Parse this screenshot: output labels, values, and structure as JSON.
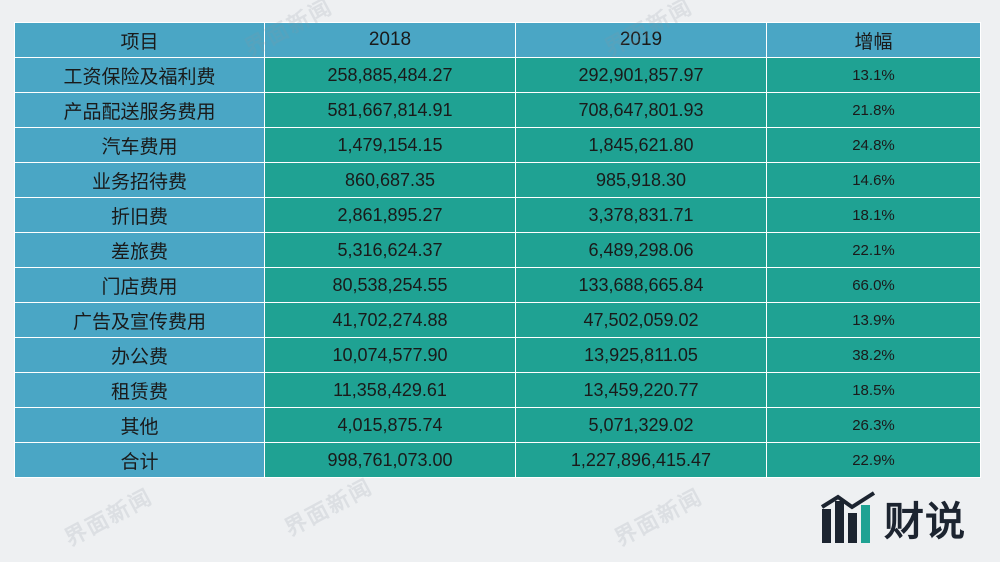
{
  "table": {
    "headers": [
      "项目",
      "2018",
      "2019",
      "增幅"
    ],
    "rows": [
      {
        "label": "工资保险及福利费",
        "y2018": "258,885,484.27",
        "y2019": "292,901,857.97",
        "growth": "13.1%"
      },
      {
        "label": "产品配送服务费用",
        "y2018": "581,667,814.91",
        "y2019": "708,647,801.93",
        "growth": "21.8%"
      },
      {
        "label": "汽车费用",
        "y2018": "1,479,154.15",
        "y2019": "1,845,621.80",
        "growth": "24.8%"
      },
      {
        "label": "业务招待费",
        "y2018": "860,687.35",
        "y2019": "985,918.30",
        "growth": "14.6%"
      },
      {
        "label": "折旧费",
        "y2018": "2,861,895.27",
        "y2019": "3,378,831.71",
        "growth": "18.1%"
      },
      {
        "label": "差旅费",
        "y2018": "5,316,624.37",
        "y2019": "6,489,298.06",
        "growth": "22.1%"
      },
      {
        "label": "门店费用",
        "y2018": "80,538,254.55",
        "y2019": "133,688,665.84",
        "growth": "66.0%"
      },
      {
        "label": "广告及宣传费用",
        "y2018": "41,702,274.88",
        "y2019": "47,502,059.02",
        "growth": "13.9%"
      },
      {
        "label": "办公费",
        "y2018": "10,074,577.90",
        "y2019": "13,925,811.05",
        "growth": "38.2%"
      },
      {
        "label": "租赁费",
        "y2018": "11,358,429.61",
        "y2019": "13,459,220.77",
        "growth": "18.5%"
      },
      {
        "label": "其他",
        "y2018": "4,015,875.74",
        "y2019": "5,071,329.02",
        "growth": "26.3%"
      },
      {
        "label": "合计",
        "y2018": "998,761,073.00",
        "y2019": "1,227,896,415.47",
        "growth": "22.9%"
      }
    ]
  },
  "logo": {
    "text": "财说",
    "icon": "bar-chart-logo-icon"
  },
  "watermark": {
    "text": "界面新闻"
  },
  "colors": {
    "header_bg": "#4aa6c5",
    "cell_bg": "#1fa293",
    "page_bg": "#eef0f2"
  }
}
